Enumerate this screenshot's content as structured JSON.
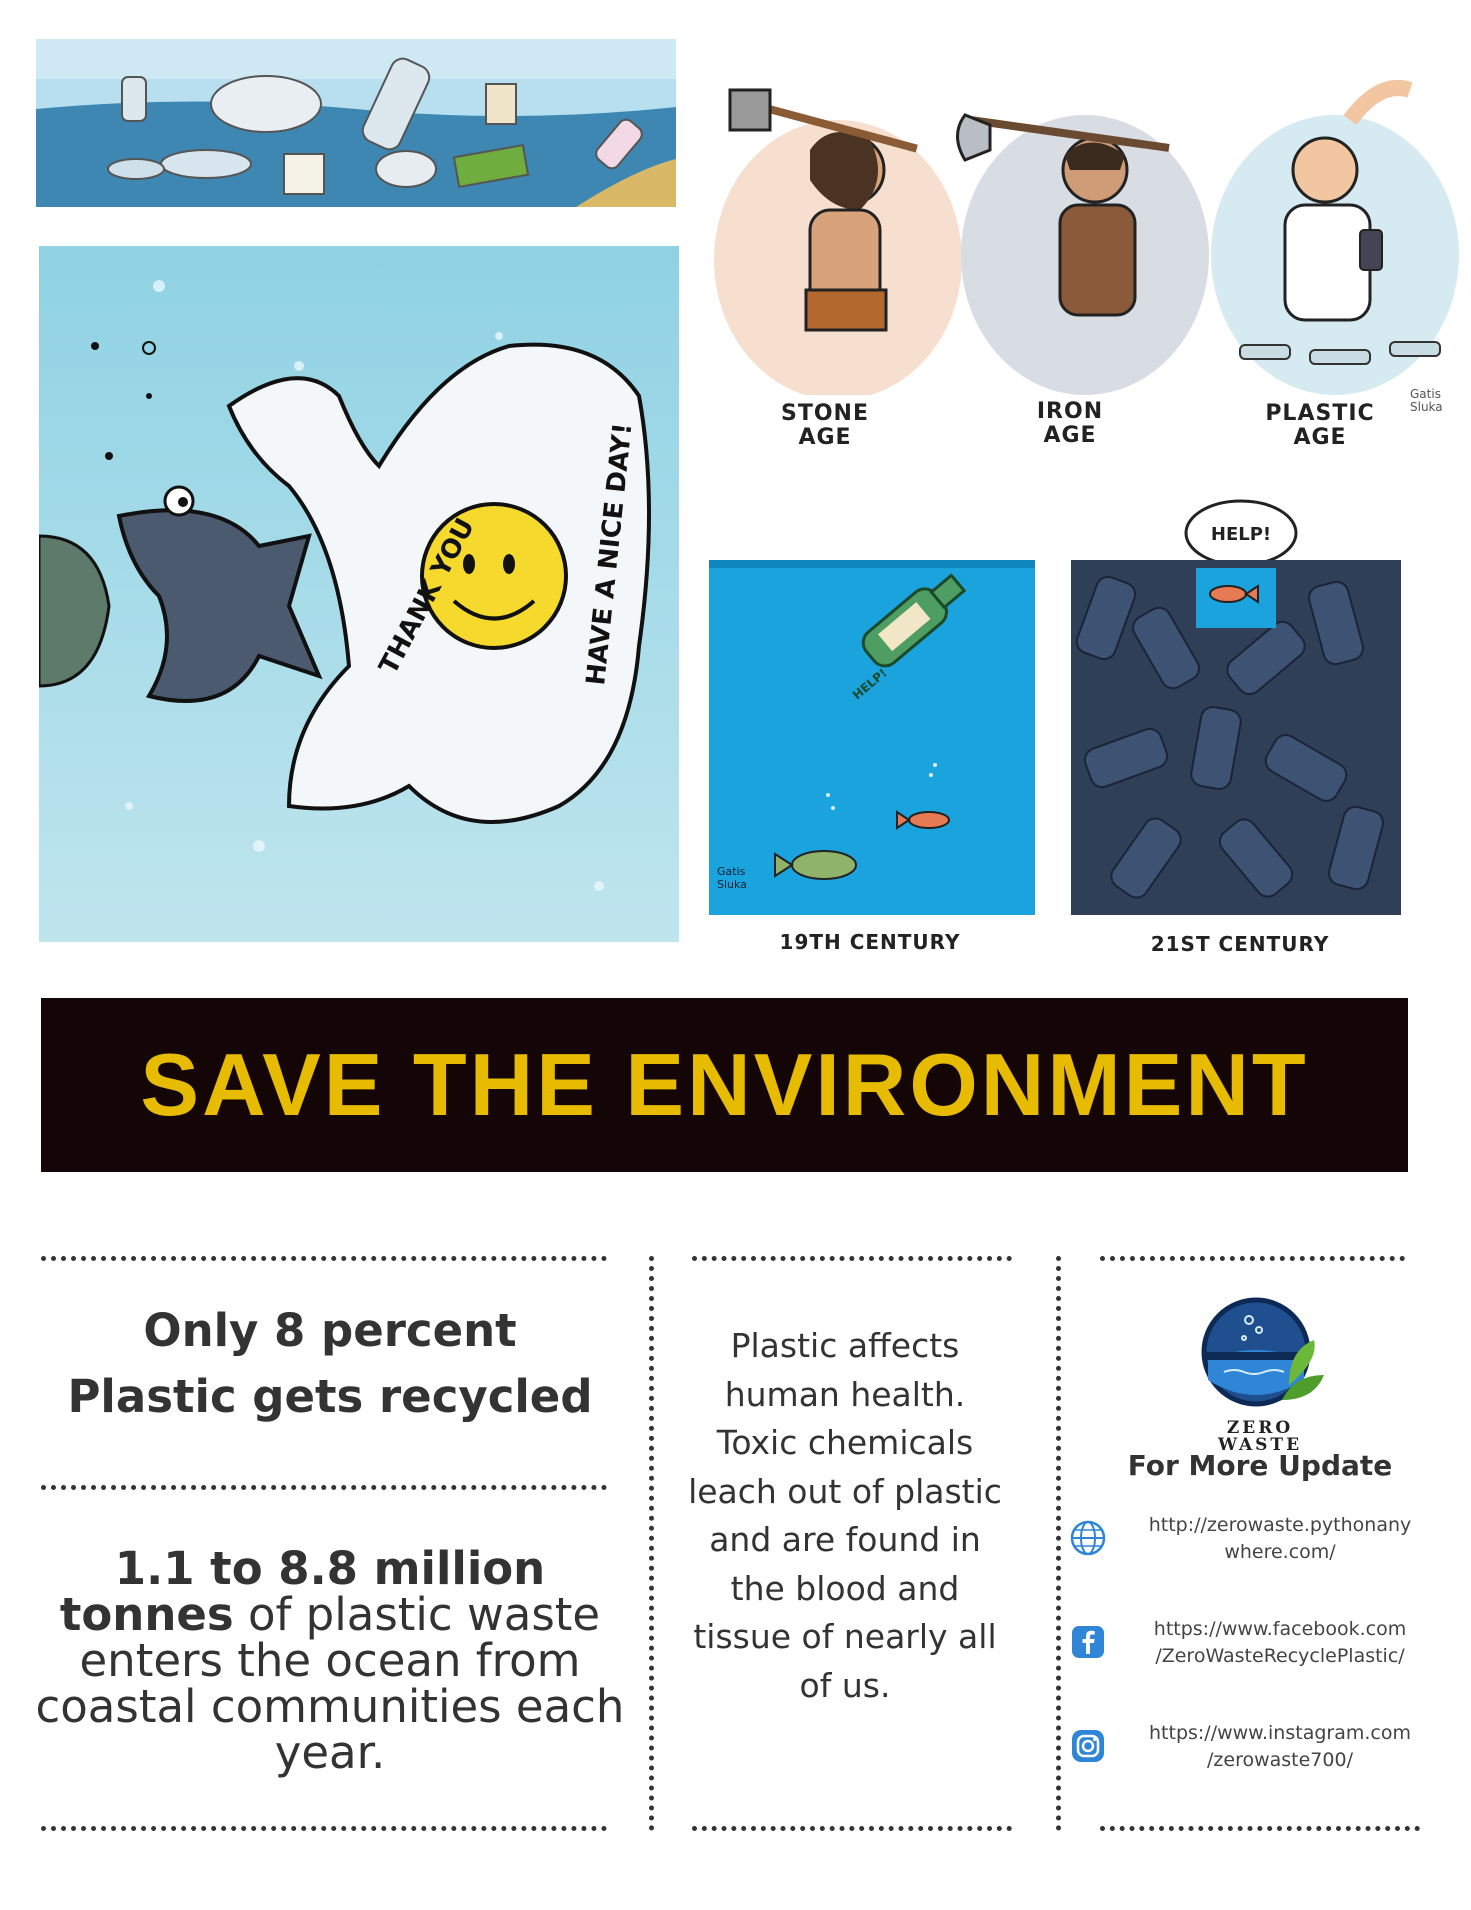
{
  "cartoons": {
    "bag_text_left": "THANK YOU",
    "bag_text_right": "HAVE A NICE DAY!",
    "ages": [
      {
        "label_line1": "STONE",
        "label_line2": "AGE"
      },
      {
        "label_line1": "IRON",
        "label_line2": "AGE"
      },
      {
        "label_line1": "PLASTIC",
        "label_line2": "AGE"
      }
    ],
    "bottle_note": "HELP!",
    "speech_bubble": "HELP!",
    "century_left": "19TH CENTURY",
    "century_right": "21ST CENTURY",
    "signature_line1": "Gatis",
    "signature_line2": "Sluka"
  },
  "banner": {
    "title": "SAVE THE ENVIRONMENT"
  },
  "facts": {
    "recycled_line1": "Only 8 percent",
    "recycled_line2": "Plastic gets recycled",
    "ocean_bold": "1.1 to 8.8 million tonnes",
    "ocean_rest": " of plastic waste enters the ocean from coastal communities each year.",
    "health_text": "Plastic affects human health. Toxic chemicals leach out of plastic and are found in the blood and tissue of nearly all of us."
  },
  "contact": {
    "brand_line1": "ZERO",
    "brand_line2": "WASTE",
    "heading": "For More Update",
    "website_line1": "http://zerowaste.pythonany",
    "website_line2": "where.com/",
    "facebook_line1": "https://www.facebook.com",
    "facebook_line2": "/ZeroWasteRecyclePlastic/",
    "instagram_line1": "https://www.instagram.com",
    "instagram_line2": "/zerowaste700/",
    "icons": [
      "globe-icon",
      "facebook-icon",
      "instagram-icon"
    ]
  },
  "colors": {
    "banner_bg": "#140607",
    "banner_text": "#e7bb00",
    "sea_light": "#8fd2e4",
    "sea_deep": "#1aa3dd",
    "accent_blue": "#2f86d6"
  }
}
